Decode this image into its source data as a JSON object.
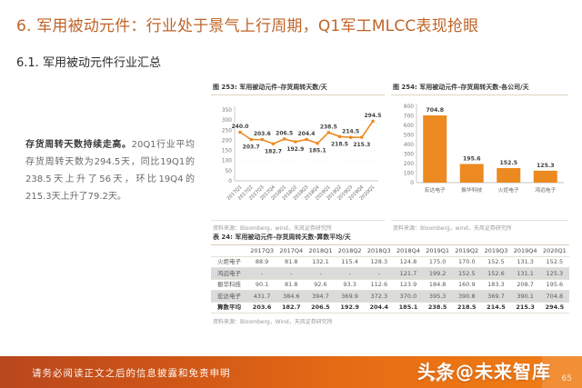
{
  "page": {
    "title": "6. 军用被动元件：行业处于景气上行周期，Q1军工MLCC表现抢眼",
    "subtitle": "6.1. 军用被动元件行业汇总",
    "body_lead": "存货周转天数持续走高。",
    "body_text": "20Q1行业平均存货周转天数为294.5天，同比19Q1的238.5天上升了56天，环比19Q4的215.3天上升了79.2天。",
    "footer_disclaimer": "请务必阅读正文之后的信息披露和免责申明",
    "watermark": "头条@未来智库",
    "page_number": "65"
  },
  "colors": {
    "accent_orange": "#ec8a21",
    "title_orange": "#bf6428",
    "footer_gradient_left": "#b9471d",
    "footer_gradient_right": "#f07e15",
    "table_highlight": "#dbdbdb"
  },
  "chart_data": [
    {
      "id": "fig253",
      "type": "line",
      "title": "图 253: 军用被动元件-存货周转天数/天",
      "categories": [
        "2017Q1",
        "2017Q2",
        "2017Q3",
        "2017Q4",
        "2018Q1",
        "2018Q2",
        "2018Q3",
        "2018Q4",
        "2019Q1",
        "2019Q2",
        "2019Q3",
        "2019Q4",
        "2020Q1"
      ],
      "values": [
        240.0,
        203.7,
        203.6,
        182.7,
        206.5,
        192.9,
        204.4,
        185.1,
        238.5,
        218.5,
        214.5,
        215.3,
        294.5
      ],
      "ylim": [
        0,
        350
      ],
      "ytick_step": 50,
      "grid": true,
      "legend": "none",
      "source": "资料来源：Bloomberg，wind，天风证券研究所"
    },
    {
      "id": "fig254",
      "type": "bar",
      "title": "图 254: 军用被动元件-存货周转天数-各公司/天",
      "categories": [
        "宏达电子",
        "振华科技",
        "火炬电子",
        "鸿远电子"
      ],
      "values": [
        704.8,
        195.6,
        152.5,
        125.3
      ],
      "ylim": [
        0,
        800
      ],
      "ytick_step": 100,
      "grid": false,
      "legend": "none",
      "source": "资料来源：Bloomberg，wind，天风证券研究所"
    },
    {
      "id": "table24",
      "type": "table",
      "title": "表 24: 军用被动元件-存货周转天数-算数平均/天",
      "columns": [
        "",
        "2017Q3",
        "2017Q4",
        "2018Q1",
        "2018Q2",
        "2018Q3",
        "2018Q4",
        "2019Q1",
        "2019Q2",
        "2019Q3",
        "2019Q4",
        "2020Q1"
      ],
      "rows": [
        {
          "name": "火炬电子",
          "values": [
            "88.9",
            "81.8",
            "132.1",
            "115.4",
            "128.3",
            "124.8",
            "175.0",
            "170.0",
            "152.5",
            "131.3",
            "152.5"
          ],
          "highlight": false,
          "bold": false
        },
        {
          "name": "鸿远电子",
          "values": [
            "-",
            "-",
            "-",
            "-",
            "-",
            "121.7",
            "199.2",
            "152.5",
            "152.6",
            "131.1",
            "125.3"
          ],
          "highlight": true,
          "bold": false
        },
        {
          "name": "振华科技",
          "values": [
            "90.1",
            "81.8",
            "92.6",
            "93.3",
            "112.6",
            "123.9",
            "184.8",
            "160.9",
            "183.3",
            "208.7",
            "195.6"
          ],
          "highlight": false,
          "bold": false
        },
        {
          "name": "宏达电子",
          "values": [
            "431.7",
            "384.6",
            "394.7",
            "369.9",
            "372.3",
            "370.0",
            "395.3",
            "390.8",
            "369.7",
            "390.1",
            "704.8"
          ],
          "highlight": true,
          "bold": false
        },
        {
          "name": "算数平均",
          "values": [
            "203.6",
            "182.7",
            "206.5",
            "192.9",
            "204.4",
            "185.1",
            "238.5",
            "218.5",
            "214.5",
            "215.3",
            "294.5"
          ],
          "highlight": false,
          "bold": true
        }
      ],
      "source": "资料来源：Bloomberg，Wind，天风证券研究所"
    }
  ]
}
